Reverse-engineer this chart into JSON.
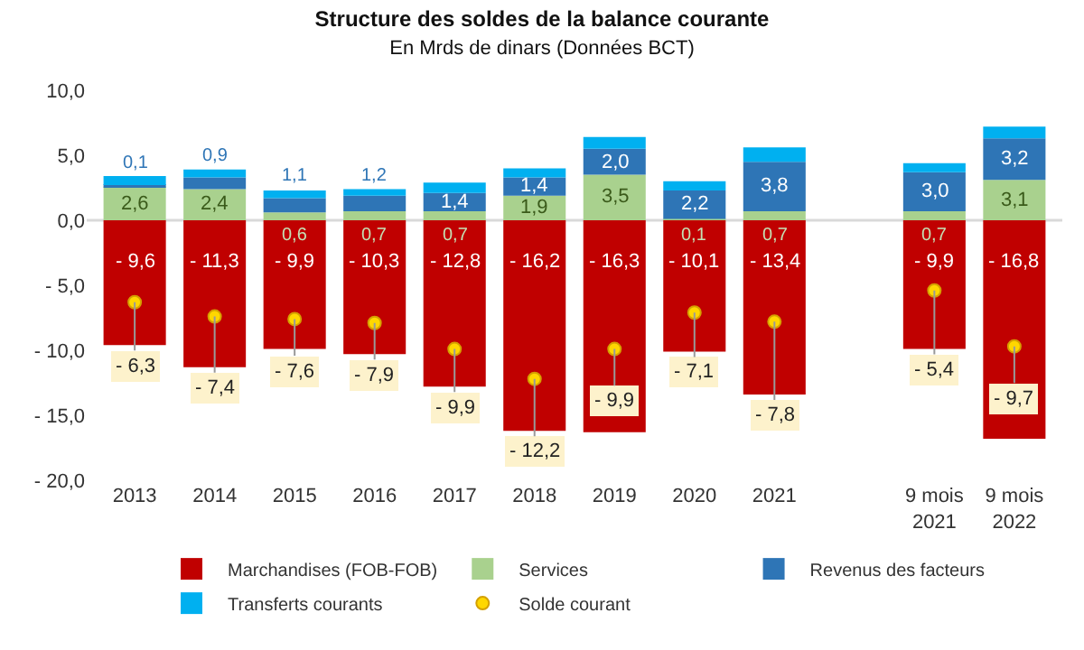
{
  "chart_data": {
    "type": "bar",
    "title": "Structure des soldes de la balance courante",
    "subtitle": "En Mrds de dinars (Données BCT)",
    "categories": [
      "2013",
      "2014",
      "2015",
      "2016",
      "2017",
      "2018",
      "2019",
      "2020",
      "2021",
      null,
      "9 mois 2021",
      "9 mois 2022"
    ],
    "stacked": true,
    "series": [
      {
        "name": "Marchandises (FOB-FOB)",
        "color": "#c00000",
        "values": [
          -9.6,
          -11.3,
          -9.9,
          -10.3,
          -12.8,
          -16.2,
          -16.3,
          -10.1,
          -13.4,
          null,
          -9.9,
          -16.8
        ],
        "value_labels": [
          "- 9,6",
          "- 11,3",
          "- 9,9",
          "- 10,3",
          "- 12,8",
          "- 16,2",
          "- 16,3",
          "- 10,1",
          "- 13,4",
          null,
          "- 9,9",
          "- 16,8"
        ]
      },
      {
        "name": "Services",
        "color": "#a9d18e",
        "values": [
          2.6,
          2.4,
          0.6,
          0.7,
          0.7,
          1.9,
          3.5,
          0.1,
          0.7,
          null,
          0.7,
          3.1
        ],
        "value_labels": [
          "2,6",
          "2,4",
          "0,6",
          "0,7",
          "0,7",
          "1,9",
          "3,5",
          "0,1",
          "0,7",
          null,
          "0,7",
          "3,1"
        ]
      },
      {
        "name": "Revenus des facteurs",
        "color": "#2e75b6",
        "values": [
          0.1,
          0.9,
          1.1,
          1.2,
          1.4,
          1.4,
          2.0,
          2.2,
          3.8,
          null,
          3.0,
          3.2
        ],
        "value_labels": [
          "0,1",
          "0,9",
          "1,1",
          "1,2",
          "1,4",
          "1,4",
          "2,0",
          "2,2",
          "3,8",
          null,
          "3,0",
          "3,2"
        ]
      },
      {
        "name": "Transferts courants",
        "color": "#00b0f0",
        "values": [
          0.7,
          0.6,
          0.6,
          0.5,
          0.8,
          0.7,
          0.9,
          0.7,
          1.1,
          null,
          0.7,
          0.9
        ]
      },
      {
        "name": "Solde courant",
        "type": "scatter",
        "color": "#ffd700",
        "values": [
          -6.3,
          -7.4,
          -7.6,
          -7.9,
          -9.9,
          -12.2,
          -9.9,
          -7.1,
          -7.8,
          null,
          -5.4,
          -9.7
        ],
        "value_labels": [
          "- 6,3",
          "- 7,4",
          "- 7,6",
          "- 7,9",
          "- 9,9",
          "- 12,2",
          "- 9,9",
          "- 7,1",
          "- 7,8",
          null,
          "- 5,4",
          "- 9,7"
        ]
      }
    ],
    "ylim": [
      -20,
      10
    ],
    "ref_lines": [
      {
        "axis": "y",
        "value": 0,
        "color": "#d9d9d9"
      }
    ],
    "yticks": [
      {
        "value": 10,
        "label": "10,0"
      },
      {
        "value": 5,
        "label": "5,0"
      },
      {
        "value": 0,
        "label": "0,0"
      },
      {
        "value": -5,
        "label": "- 5,0"
      },
      {
        "value": -10,
        "label": "- 10,0"
      },
      {
        "value": -15,
        "label": "- 15,0"
      },
      {
        "value": -20,
        "label": "- 20,0"
      }
    ],
    "grid": false,
    "legend": "bottom",
    "marker": "circle"
  }
}
